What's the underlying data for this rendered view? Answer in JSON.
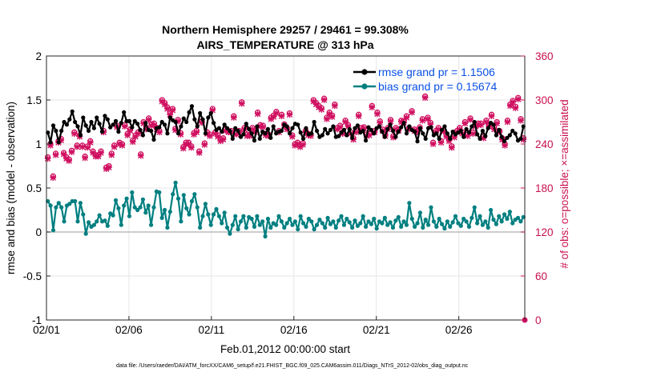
{
  "chart_data": {
    "type": "line",
    "title": "Northern Hemisphere 29257 / 29461 = 99.308%",
    "subtitle": "AIRS_TEMPERATURE @ 313 hPa",
    "xlabel": "Feb.01,2012 00:00:00 start",
    "ylabel": "rmse and bias (model - observation)",
    "ylabel_right": "# of obs: o=possible; ×=assimilated",
    "footer": "data file: /Users/raeder/DAI/ATM_forcXX/CAM6_setup/f.e21.FHIST_BGC.f09_025.CAM6assim.011/Diags_NTrS_2012-02/obs_diag_output.nc",
    "x_ticks": [
      "02/01",
      "02/06",
      "02/11",
      "02/16",
      "02/21",
      "02/26"
    ],
    "xlim": [
      0,
      29
    ],
    "ylim": [
      -1,
      2
    ],
    "y_ticks": [
      "-1",
      "-0.5",
      "0",
      "0.5",
      "1",
      "1.5",
      "2"
    ],
    "ylim_right": [
      0,
      360
    ],
    "y_ticks_right": [
      "0",
      "60",
      "120",
      "180",
      "240",
      "300",
      "360"
    ],
    "grid": true,
    "legend_position": "top-right",
    "colors": {
      "rmse": "#000000",
      "bias": "#007f80",
      "obs": "#d01060",
      "zero_line": "#bbbbbb"
    },
    "series": [
      {
        "name": "rmse grand pr = 1.1506",
        "axis": "left",
        "values": [
          1.13,
          1.02,
          1.21,
          1.15,
          1.02,
          1.15,
          1.25,
          1.22,
          1.28,
          1.37,
          1.25,
          1.2,
          1.1,
          1.3,
          1.21,
          1.15,
          1.25,
          1.18,
          1.3,
          1.23,
          1.14,
          1.32,
          1.28,
          1.19,
          1.22,
          1.26,
          1.14,
          1.24,
          1.36,
          1.26,
          1.26,
          1.19,
          1.26,
          1.23,
          1.16,
          1.1,
          1.24,
          1.16,
          1.15,
          1.05,
          1.18,
          1.19,
          1.25,
          1.22,
          1.12,
          1.3,
          1.27,
          1.25,
          1.12,
          1.2,
          1.29,
          1.25,
          1.36,
          1.43,
          1.28,
          1.2,
          1.35,
          1.28,
          1.12,
          1.3,
          1.35,
          1.24,
          1.16,
          1.18,
          1.14,
          1.22,
          1.18,
          1.15,
          1.06,
          1.18,
          1.15,
          1.08,
          1.11,
          1.23,
          1.17,
          1.12,
          1.04,
          1.2,
          1.06,
          1.14,
          1.12,
          1.17,
          1.07,
          1.2,
          1.12,
          1.14,
          1.15,
          1.22,
          1.2,
          1.12,
          1.18,
          1.23,
          1.22,
          1.13,
          1.06,
          1.18,
          1.11,
          1.12,
          1.25,
          1.15,
          1.08,
          1.1,
          1.17,
          1.12,
          1.16,
          1.2,
          1.08,
          1.09,
          1.13,
          1.16,
          1.1,
          1.17,
          1.07,
          1.18,
          1.21,
          1.13,
          1.15,
          1.04,
          1.19,
          1.16,
          1.12,
          1.18,
          1.2,
          1.14,
          1.08,
          1.17,
          1.22,
          1.15,
          1.08,
          1.14,
          1.19,
          1.24,
          1.12,
          1.2,
          1.16,
          1.14,
          1.03,
          1.18,
          1.12,
          1.06,
          1.18,
          1.19,
          1.1,
          1.12,
          1.06,
          1.16,
          1.2,
          1.12,
          1.06,
          1.14,
          1.11,
          1.13,
          1.15,
          1.08,
          1.17,
          1.13,
          1.2,
          1.25,
          1.11,
          1.06,
          1.15,
          1.09,
          1.18,
          1.24,
          1.22,
          1.1,
          1.16,
          1.08,
          1.03,
          1.07,
          1.1,
          1.15,
          1.12,
          1.04,
          1.06,
          1.2
        ]
      },
      {
        "name": "bias grand pr = 0.15674",
        "axis": "left",
        "values": [
          0.35,
          0.3,
          0.02,
          0.28,
          0.33,
          0.28,
          0.12,
          0.3,
          0.32,
          0.35,
          0.35,
          0.12,
          0.33,
          0.2,
          -0.02,
          0.11,
          0.06,
          0.08,
          0.12,
          0.19,
          0.12,
          0.13,
          0.07,
          0.21,
          0.19,
          0.36,
          0.27,
          0.08,
          0.3,
          0.38,
          0.18,
          0.45,
          0.28,
          0.25,
          0.28,
          0.37,
          0.22,
          0.3,
          0.08,
          0.28,
          0.46,
          0.45,
          0.16,
          0.25,
          0.05,
          0.23,
          0.43,
          0.56,
          0.38,
          0.12,
          0.42,
          0.27,
          0.2,
          0.35,
          0.43,
          0.28,
          0.05,
          0.18,
          0.32,
          0.2,
          0.08,
          0.2,
          0.26,
          0.18,
          0.1,
          0.22,
          0.05,
          -0.02,
          0.08,
          0.18,
          0.03,
          0.12,
          0.18,
          0.05,
          0.17,
          0.15,
          0.06,
          0.18,
          0.08,
          0.12,
          -0.05,
          0.15,
          0.05,
          0.1,
          0.08,
          0.18,
          0.12,
          0.05,
          0.1,
          0.15,
          0.08,
          0.12,
          0.03,
          0.18,
          0.1,
          0.06,
          0.15,
          0.12,
          0.03,
          0.08,
          0.14,
          0.1,
          0.05,
          0.16,
          0.09,
          0.12,
          0.05,
          0.13,
          0.18,
          0.08,
          0.15,
          0.11,
          0.05,
          0.13,
          0.07,
          0.1,
          0.18,
          0.06,
          0.12,
          0.09,
          0.15,
          0.04,
          0.12,
          0.1,
          0.16,
          0.08,
          0.11,
          0.05,
          0.13,
          0.17,
          0.06,
          0.12,
          0.08,
          0.33,
          0.15,
          0.06,
          0.1,
          0.22,
          0.05,
          0.14,
          0.08,
          0.28,
          0.12,
          0.06,
          0.15,
          0.09,
          0.04,
          0.12,
          0.06,
          0.11,
          0.18,
          0.1,
          0.07,
          0.15,
          0.12,
          0.06,
          0.16,
          0.28,
          0.1,
          0.18,
          0.08,
          0.12,
          0.05,
          0.25,
          0.14,
          0.09,
          0.18,
          0.12,
          0.2,
          0.15,
          0.23,
          0.1,
          0.14,
          0.16,
          0.12,
          0.17
        ]
      },
      {
        "name": "# of obs possible",
        "axis": "right",
        "marker": "o",
        "values": [
          222,
          240,
          196,
          227,
          244,
          247,
          228,
          222,
          219,
          231,
          256,
          238,
          252,
          238,
          223,
          237,
          244,
          230,
          225,
          225,
          230,
          258,
          208,
          210,
          227,
          238,
          265,
          242,
          240,
          266,
          254,
          260,
          245,
          252,
          256,
          226,
          270,
          262,
          275,
          267,
          268,
          262,
          258,
          300,
          296,
          290,
          282,
          288,
          261,
          273,
          255,
          236,
          242,
          242,
          237,
          255,
          258,
          230,
          271,
          241,
          256,
          253,
          288,
          256,
          252,
          246,
          248,
          260,
          258,
          258,
          278,
          255,
          258,
          297,
          262,
          253,
          253,
          262,
          258,
          283,
          266,
          265,
          254,
          253,
          276,
          279,
          284,
          258,
          280,
          267,
          262,
          282,
          252,
          240,
          242,
          238,
          241,
          258,
          254,
          253,
          300,
          296,
          292,
          289,
          302,
          276,
          283,
          279,
          294,
          262,
          265,
          256,
          272,
          266,
          256,
          248,
          258,
          280,
          262,
          263,
          253,
          254,
          292,
          258,
          283,
          271,
          260,
          253,
          262,
          273,
          251,
          262,
          260,
          272,
          271,
          278,
          262,
          285,
          260,
          258,
          263,
          274,
          305,
          276,
          269,
          242,
          258,
          262,
          244,
          259,
          252,
          246,
          237,
          251,
          258,
          262,
          256,
          270,
          253,
          275,
          256,
          266,
          268,
          268,
          250,
          272,
          266,
          280,
          262,
          270,
          258,
          248,
          240,
          272,
          294,
          299,
          291,
          303,
          274,
          248
        ]
      },
      {
        "name": "# of obs assimilated",
        "axis": "right",
        "marker": "x",
        "values": [
          220,
          238,
          194,
          225,
          242,
          245,
          226,
          220,
          217,
          229,
          254,
          236,
          250,
          236,
          221,
          235,
          242,
          228,
          223,
          223,
          228,
          256,
          206,
          208,
          225,
          236,
          263,
          240,
          238,
          264,
          252,
          258,
          243,
          250,
          254,
          224,
          268,
          260,
          273,
          265,
          266,
          260,
          256,
          298,
          294,
          288,
          280,
          286,
          259,
          271,
          253,
          234,
          240,
          240,
          235,
          253,
          256,
          228,
          269,
          239,
          254,
          251,
          286,
          254,
          250,
          244,
          246,
          258,
          256,
          256,
          276,
          253,
          256,
          295,
          260,
          251,
          251,
          260,
          256,
          281,
          264,
          263,
          252,
          251,
          274,
          277,
          282,
          256,
          278,
          265,
          260,
          280,
          250,
          238,
          240,
          236,
          239,
          256,
          252,
          251,
          298,
          294,
          290,
          287,
          300,
          274,
          281,
          277,
          292,
          260,
          263,
          254,
          270,
          264,
          254,
          246,
          256,
          278,
          260,
          261,
          251,
          252,
          290,
          256,
          281,
          269,
          258,
          251,
          260,
          271,
          249,
          260,
          258,
          270,
          269,
          276,
          260,
          283,
          258,
          256,
          261,
          272,
          303,
          274,
          267,
          240,
          256,
          260,
          242,
          257,
          250,
          244,
          235,
          249,
          256,
          260,
          254,
          268,
          251,
          273,
          254,
          264,
          266,
          266,
          248,
          270,
          264,
          278,
          260,
          268,
          256,
          246,
          238,
          270,
          292,
          297,
          289,
          301,
          272,
          246
        ]
      }
    ]
  }
}
